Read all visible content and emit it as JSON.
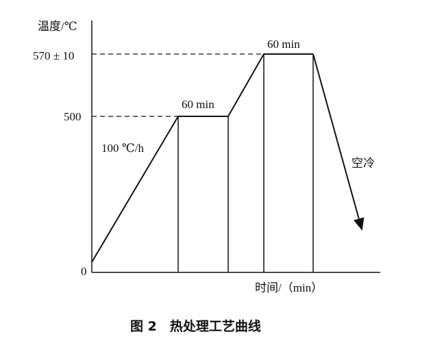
{
  "axis": {
    "y_label": "温度/℃",
    "x_label": "时间/（min）"
  },
  "y_ticks": [
    "570 ± 10",
    "500",
    "0"
  ],
  "annotations": [
    "100 ℃/h",
    "60 min",
    "60 min",
    "空冷"
  ],
  "caption": "图 2　热处理工艺曲线"
}
